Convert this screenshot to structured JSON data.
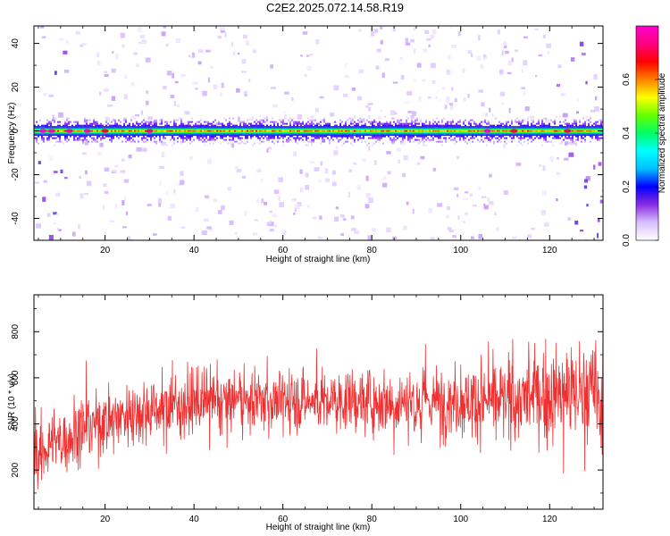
{
  "title": "C2E2.2025.072.14.58.R19",
  "chart_data": [
    {
      "type": "heatmap",
      "title": "C2E2.2025.072.14.58.R19",
      "xlabel": "Height of straight line (km)",
      "ylabel": "Frequency (Hz)",
      "xlim": [
        4,
        132
      ],
      "ylim": [
        -50,
        48
      ],
      "xticks": [
        20,
        40,
        60,
        80,
        100,
        120
      ],
      "yticks": [
        -40,
        -20,
        0,
        20,
        40
      ],
      "colorbar": {
        "label": "Normalized spectral amplitude",
        "range": [
          0,
          0.8
        ],
        "ticks": [
          "0.0",
          "0.2",
          "0.4",
          "0.6"
        ],
        "colormap": [
          "#ffffff",
          "#d8bfff",
          "#8a2be2",
          "#0000ff",
          "#00bfff",
          "#00ffff",
          "#00ff66",
          "#66ff00",
          "#ffff00",
          "#ff8000",
          "#ff0000",
          "#ff0080",
          "#ff00cc"
        ]
      },
      "band": {
        "center_frequency": 0,
        "description": "continuous high-amplitude band at ~0 Hz across all heights"
      },
      "peaks": [
        {
          "x": 6,
          "y": 0,
          "value": 0.8
        },
        {
          "x": 8,
          "y": 0,
          "value": 0.8
        },
        {
          "x": 12,
          "y": 0,
          "value": 0.75
        },
        {
          "x": 16,
          "y": 0,
          "value": 0.78
        },
        {
          "x": 20,
          "y": 0,
          "value": 0.7
        },
        {
          "x": 30,
          "y": 0,
          "value": 0.72
        },
        {
          "x": 106,
          "y": 0,
          "value": 0.8
        },
        {
          "x": 112,
          "y": 0,
          "value": 0.7
        },
        {
          "x": 124,
          "y": 0,
          "value": 0.7
        }
      ],
      "grid": false
    },
    {
      "type": "line",
      "xlabel": "Height of straight line (km)",
      "ylabel": "SNR (10 * v/v)",
      "xlim": [
        4,
        132
      ],
      "ylim": [
        30,
        960
      ],
      "xticks": [
        20,
        40,
        60,
        80,
        100,
        120
      ],
      "yticks": [
        200,
        400,
        600,
        800
      ],
      "color": "#f03030",
      "envelope": [
        {
          "x": 4,
          "mean": 260,
          "lo": 80,
          "hi": 500
        },
        {
          "x": 10,
          "mean": 330,
          "lo": 100,
          "hi": 640
        },
        {
          "x": 16,
          "mean": 390,
          "lo": 150,
          "hi": 680
        },
        {
          "x": 24,
          "mean": 440,
          "lo": 210,
          "hi": 700
        },
        {
          "x": 32,
          "mean": 470,
          "lo": 250,
          "hi": 730
        },
        {
          "x": 40,
          "mean": 490,
          "lo": 260,
          "hi": 760
        },
        {
          "x": 50,
          "mean": 500,
          "lo": 280,
          "hi": 740
        },
        {
          "x": 60,
          "mean": 500,
          "lo": 280,
          "hi": 740
        },
        {
          "x": 70,
          "mean": 500,
          "lo": 280,
          "hi": 730
        },
        {
          "x": 80,
          "mean": 500,
          "lo": 260,
          "hi": 760
        },
        {
          "x": 90,
          "mean": 500,
          "lo": 260,
          "hi": 760
        },
        {
          "x": 100,
          "mean": 500,
          "lo": 220,
          "hi": 770
        },
        {
          "x": 110,
          "mean": 500,
          "lo": 200,
          "hi": 790
        },
        {
          "x": 120,
          "mean": 520,
          "lo": 160,
          "hi": 850
        },
        {
          "x": 126,
          "mean": 540,
          "lo": 110,
          "hi": 920
        },
        {
          "x": 132,
          "mean": 520,
          "lo": 80,
          "hi": 950
        }
      ],
      "grid": false
    }
  ]
}
